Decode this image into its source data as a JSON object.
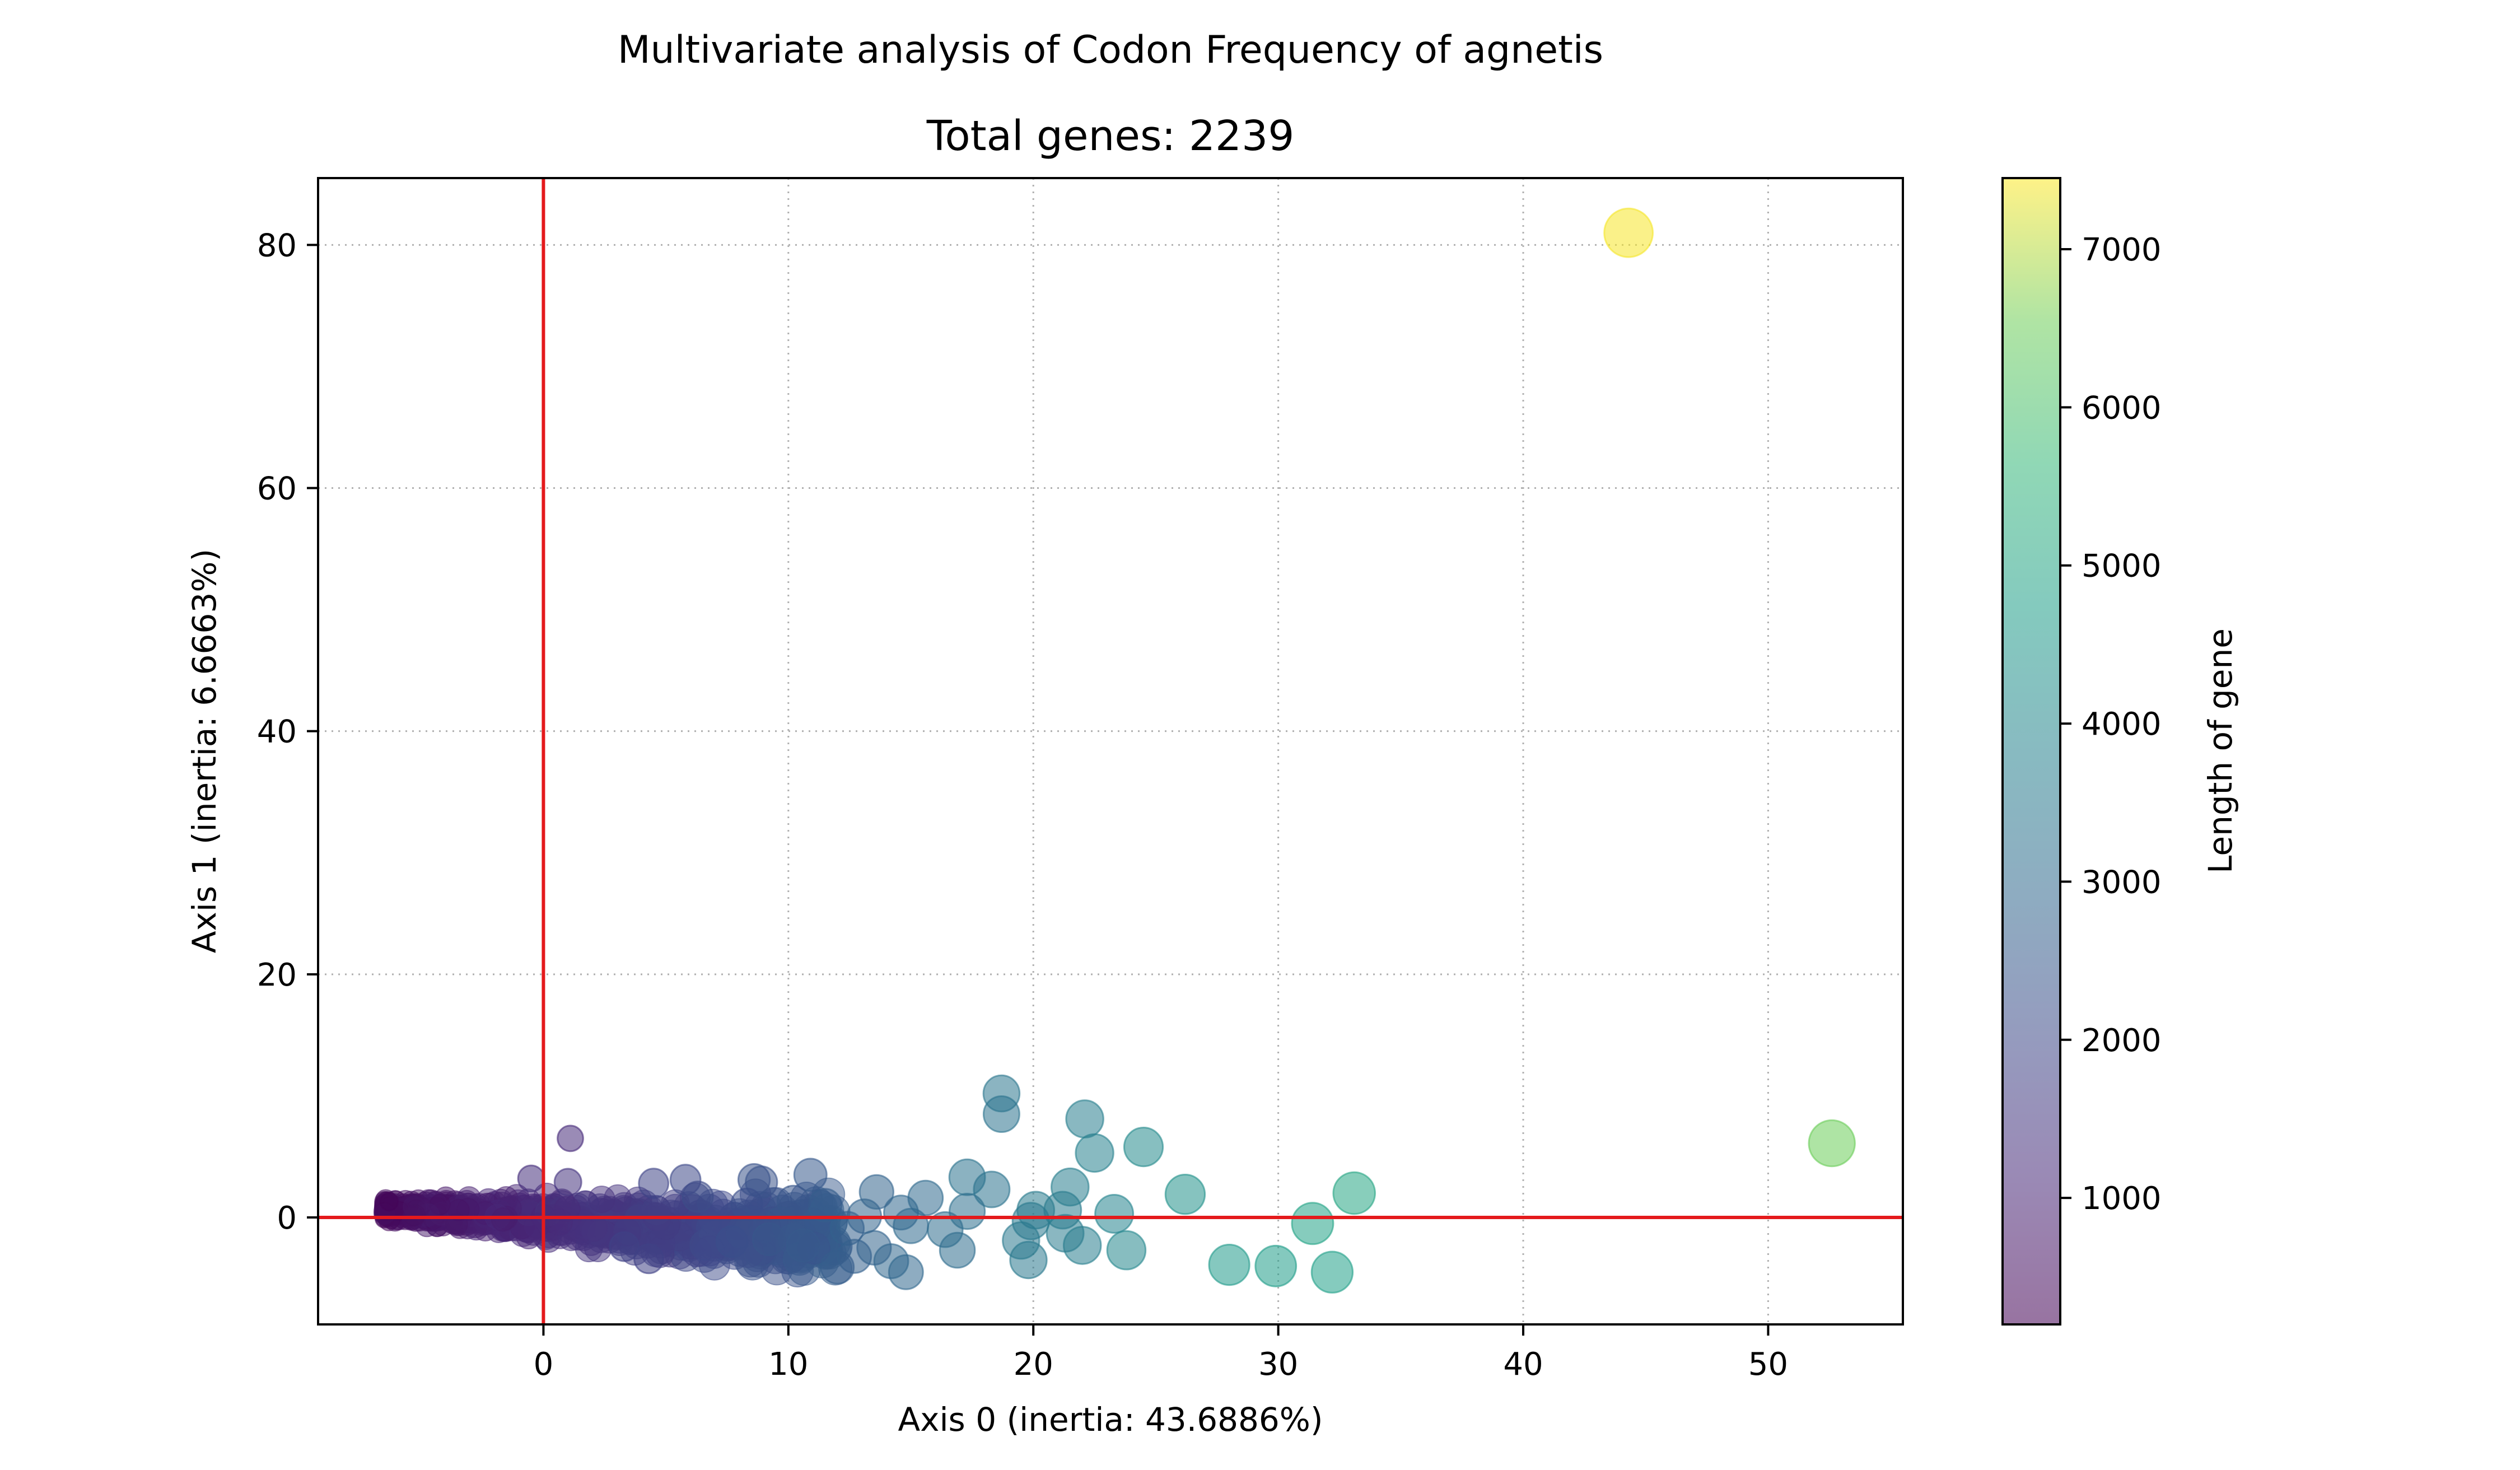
{
  "chart_data": {
    "type": "scatter",
    "suptitle": "Multivariate analysis of Codon Frequency of agnetis",
    "title": "Total genes: 2239",
    "xlabel": "Axis 0 (inertia: 43.6886%)",
    "ylabel": "Axis 1 (inertia: 6.6663%)",
    "xlim": [
      -9.2,
      55.5
    ],
    "ylim": [
      -8.8,
      85.5
    ],
    "xticks": [
      0,
      10,
      20,
      30,
      40,
      50
    ],
    "yticks": [
      0,
      20,
      40,
      60,
      80
    ],
    "xtick_labels": [
      "0",
      "10",
      "20",
      "30",
      "40",
      "50"
    ],
    "ytick_labels": [
      "0",
      "20",
      "40",
      "60",
      "80"
    ],
    "grid": true,
    "reference_lines": {
      "x": 0,
      "y": 0,
      "color": "#e41a1c"
    },
    "colorbar": {
      "label": "Length of gene",
      "colormap": "viridis",
      "range": [
        200,
        7450
      ],
      "ticks": [
        1000,
        2000,
        3000,
        4000,
        5000,
        6000,
        7000
      ],
      "tick_labels": [
        "1000",
        "2000",
        "3000",
        "4000",
        "5000",
        "6000",
        "7000"
      ]
    },
    "cluster": {
      "description": "dense band of ~2200 small genes",
      "x_range": [
        -6.5,
        12
      ],
      "y_range": [
        -4,
        7
      ]
    },
    "points": [
      {
        "x": 44.3,
        "y": 81.0,
        "length": 7400
      },
      {
        "x": 52.6,
        "y": 6.1,
        "length": 6500
      },
      {
        "x": 33.1,
        "y": 2.0,
        "length": 5000
      },
      {
        "x": 31.4,
        "y": -0.5,
        "length": 4900
      },
      {
        "x": 32.2,
        "y": -4.5,
        "length": 4800
      },
      {
        "x": 29.9,
        "y": -4.0,
        "length": 4700
      },
      {
        "x": 28.0,
        "y": -3.9,
        "length": 4600
      },
      {
        "x": 26.2,
        "y": 1.9,
        "length": 4300
      },
      {
        "x": 24.5,
        "y": 5.8,
        "length": 4100
      },
      {
        "x": 23.8,
        "y": -2.7,
        "length": 4000
      },
      {
        "x": 23.3,
        "y": 0.3,
        "length": 3900
      },
      {
        "x": 22.5,
        "y": 5.3,
        "length": 3800
      },
      {
        "x": 22.1,
        "y": 8.1,
        "length": 3700
      },
      {
        "x": 22.0,
        "y": -2.3,
        "length": 3700
      },
      {
        "x": 21.5,
        "y": 2.5,
        "length": 3700
      },
      {
        "x": 21.3,
        "y": -1.3,
        "length": 3600
      },
      {
        "x": 21.2,
        "y": 0.6,
        "length": 3600
      },
      {
        "x": 20.1,
        "y": 0.6,
        "length": 3600
      },
      {
        "x": 19.9,
        "y": -0.3,
        "length": 3500
      },
      {
        "x": 19.8,
        "y": -3.5,
        "length": 3500
      },
      {
        "x": 19.5,
        "y": -1.9,
        "length": 3500
      },
      {
        "x": 18.7,
        "y": 10.2,
        "length": 3400
      },
      {
        "x": 18.7,
        "y": 8.5,
        "length": 3300
      },
      {
        "x": 18.3,
        "y": 2.3,
        "length": 3300
      },
      {
        "x": 17.3,
        "y": 3.3,
        "length": 3300
      },
      {
        "x": 17.3,
        "y": 0.5,
        "length": 3200
      },
      {
        "x": 16.9,
        "y": -2.7,
        "length": 3100
      },
      {
        "x": 16.4,
        "y": -1.0,
        "length": 3100
      },
      {
        "x": 15.6,
        "y": 1.6,
        "length": 3000
      },
      {
        "x": 15.0,
        "y": -0.7,
        "length": 3000
      },
      {
        "x": 14.8,
        "y": -4.5,
        "length": 2900
      },
      {
        "x": 14.6,
        "y": 0.4,
        "length": 2900
      },
      {
        "x": 14.2,
        "y": -3.6,
        "length": 2900
      },
      {
        "x": 13.6,
        "y": 2.1,
        "length": 2800
      },
      {
        "x": 13.5,
        "y": -2.5,
        "length": 2800
      },
      {
        "x": 13.1,
        "y": 0.1,
        "length": 2800
      },
      {
        "x": 12.7,
        "y": -3.2,
        "length": 2700
      },
      {
        "x": 12.4,
        "y": -0.9,
        "length": 2700
      },
      {
        "x": 12.0,
        "y": -4.1,
        "length": 2600
      },
      {
        "x": 11.5,
        "y": 1.0,
        "length": 2600
      },
      {
        "x": 10.9,
        "y": 3.5,
        "length": 2500
      },
      {
        "x": 10.6,
        "y": -2.3,
        "length": 2500
      },
      {
        "x": 10.2,
        "y": 1.3,
        "length": 2400
      },
      {
        "x": 9.2,
        "y": -1.8,
        "length": 2400
      },
      {
        "x": 8.9,
        "y": 2.9,
        "length": 2300
      },
      {
        "x": 8.6,
        "y": 3.1,
        "length": 2300
      },
      {
        "x": 8.3,
        "y": 1.1,
        "length": 2200
      },
      {
        "x": 7.7,
        "y": -2.0,
        "length": 2200
      },
      {
        "x": 6.3,
        "y": 1.7,
        "length": 2100
      },
      {
        "x": 5.8,
        "y": 3.1,
        "length": 2000
      },
      {
        "x": 4.5,
        "y": 2.8,
        "length": 1900
      },
      {
        "x": 4.3,
        "y": -3.4,
        "length": 1800
      },
      {
        "x": 3.3,
        "y": -2.4,
        "length": 1800
      },
      {
        "x": 1.1,
        "y": 6.5,
        "length": 1200
      },
      {
        "x": 1.0,
        "y": 2.9,
        "length": 1400
      },
      {
        "x": -0.5,
        "y": 3.2,
        "length": 1300
      },
      {
        "x": -6.3,
        "y": 1.3,
        "length": 300
      }
    ]
  }
}
